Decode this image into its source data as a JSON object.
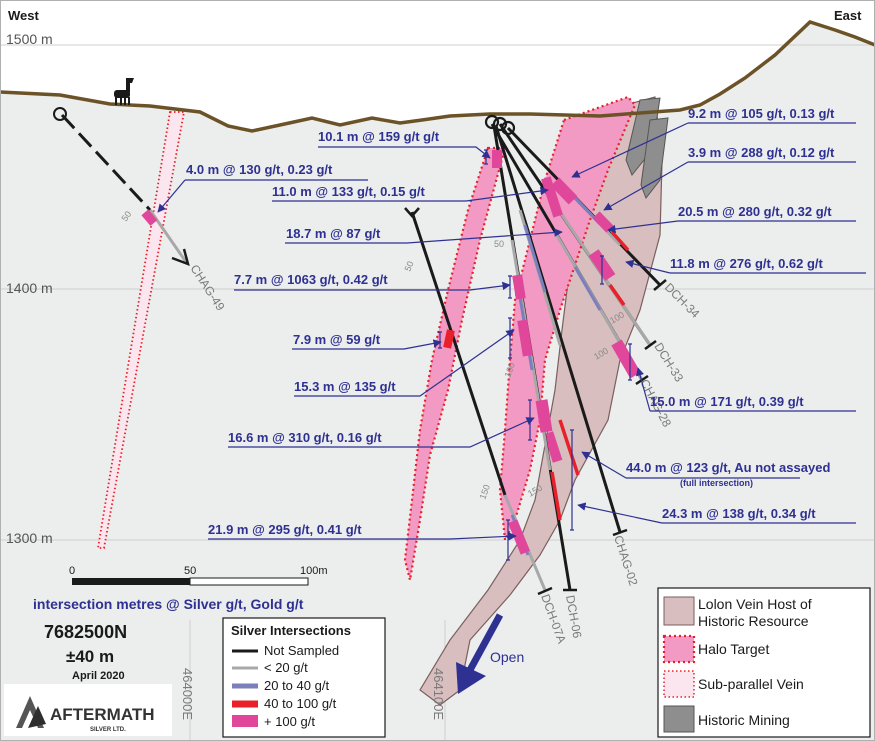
{
  "directions": {
    "west": "West",
    "east": "East"
  },
  "elevations": {
    "e1500": "1500 m",
    "e1400": "1400 m",
    "e1300": "1300 m"
  },
  "eastings": {
    "e1": "464000E",
    "e2": "464100E"
  },
  "holes": {
    "chag49": "CHAG-49",
    "dch34": "DCH-34",
    "dch33": "DCH-33",
    "chag28": "CHAG-28",
    "chag02": "CHAG-02",
    "dch06": "DCH-06",
    "dch07a": "DCH-07A"
  },
  "depth_ticks": {
    "d50a": "50",
    "d50b": "50",
    "d50c": "50",
    "d100a": "100",
    "d100b": "100",
    "d100c": "100",
    "d150a": "150",
    "d150b": "150"
  },
  "intersections": {
    "i1": "10.1 m @ 159 g/t g/t",
    "i2": "4.0 m @ 130 g/t, 0.23 g/t",
    "i3": "11.0 m @ 133 g/t, 0.15 g/t",
    "i4": "18.7 m @ 87 g/t",
    "i5": "7.7 m @ 1063 g/t, 0.42 g/t",
    "i6": "7.9 m @ 59 g/t",
    "i7": "15.3 m @ 135 g/t",
    "i8": "16.6 m @ 310 g/t, 0.16 g/t",
    "i9": "21.9 m @ 295 g/t, 0.41 g/t",
    "i10": "9.2 m @ 105 g/t, 0.13 g/t",
    "i11": "3.9 m @ 288 g/t, 0.12 g/t",
    "i12": "20.5 m @ 280 g/t, 0.32 g/t",
    "i13": "11.8 m @ 276 g/t, 0.62 g/t",
    "i14": "15.0 m @ 171 g/t, 0.39 g/t",
    "i15": "44.0 m @ 123 g/t, Au not assayed",
    "i15_note": "(full intersection)",
    "i16": "24.3 m @ 138 g/t, 0.34 g/t"
  },
  "scale_bar": {
    "t0": "0",
    "t50": "50",
    "t100": "100m"
  },
  "info": {
    "caption": "intersection metres @ Silver g/t, Gold g/t",
    "section": "7682500N",
    "width": "±40 m",
    "date": "April 2020"
  },
  "logo": {
    "name": "AFTERMATH",
    "sub": "SILVER LTD."
  },
  "open_label": "Open",
  "legend_silver": {
    "title": "Silver Intersections",
    "items": [
      {
        "label": "Not Sampled",
        "color": "#1a1a1a"
      },
      {
        "label": "< 20 g/t",
        "color": "#a8a8a8"
      },
      {
        "label": "20 to 40 g/t",
        "color": "#7c7fbd"
      },
      {
        "label": "40 to 100 g/t",
        "color": "#e8202a"
      },
      {
        "label": "+ 100 g/t",
        "color": "#e0479b"
      }
    ]
  },
  "legend_geology": {
    "host_line1": "Lolon Vein Host of",
    "host_line2": "Historic Resource",
    "halo": "Halo Target",
    "subvein": "Sub-parallel Vein",
    "mining": "Historic Mining"
  },
  "colors": {
    "topo": "#6b5327",
    "label_blue": "#2e3192",
    "host_fill": "#d8bebe",
    "halo_fill": "#f29ac4",
    "halo_edge": "#e8202a"
  }
}
